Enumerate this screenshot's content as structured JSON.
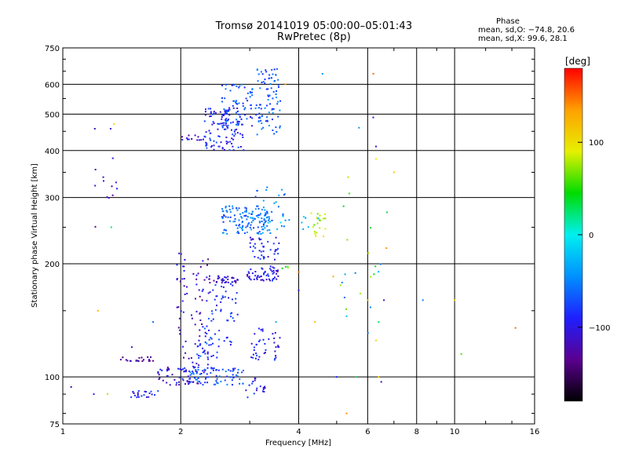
{
  "header": {
    "title": "Tromsø 20141019 05:00:00–05:01:43",
    "subtitle": "RwPretec (8p)"
  },
  "phase_stats": {
    "heading": "Phase",
    "o_line": "mean, sd,O: −74.8, 20.6",
    "x_line": "mean, sd,X:  99.6, 28.1"
  },
  "chart_data": {
    "type": "scatter",
    "title": "Tromsø 20141019 05:00:00–05:01:43",
    "subtitle": "RwPretec (8p)",
    "xlabel": "Frequency [MHz]",
    "ylabel": "Stationary phase Virtual Height [km]",
    "x_scale": "log",
    "y_scale": "log",
    "xlim": [
      1,
      16
    ],
    "ylim": [
      75,
      750
    ],
    "x_ticks": [
      1,
      2,
      4,
      6,
      8,
      10,
      16
    ],
    "x_tick_labels": [
      "1",
      "2",
      "4",
      "6",
      "8",
      "10",
      "16"
    ],
    "x_gridlines": [
      2,
      4,
      6,
      8,
      10
    ],
    "x_minor_ticks": [
      3,
      5,
      7,
      9,
      12,
      14
    ],
    "y_ticks": [
      75,
      100,
      200,
      300,
      400,
      500,
      600,
      750
    ],
    "y_tick_labels": [
      "75",
      "100",
      "200",
      "300",
      "400",
      "500",
      "600",
      "750"
    ],
    "y_gridlines": [
      100,
      200,
      300,
      400,
      500,
      600
    ],
    "grid": true,
    "colorbar": {
      "label": "[deg]",
      "range": [
        -180,
        180
      ],
      "ticks": [
        -100,
        0,
        100
      ],
      "tick_labels": [
        "−100",
        "0",
        "100"
      ],
      "colors": [
        "#000000",
        "#5a0090",
        "#1f1fff",
        "#0090ff",
        "#00f0f0",
        "#00dc00",
        "#e6f000",
        "#ffa000",
        "#ff0000"
      ]
    },
    "clusters": [
      {
        "x": [
          2.0,
          2.35
        ],
        "y": [
          425,
          440
        ],
        "phase": -105,
        "n": 14
      },
      {
        "x": [
          2.3,
          2.9
        ],
        "y": [
          400,
          520
        ],
        "phase": -90,
        "n": 110
      },
      {
        "x": [
          2.55,
          3.05
        ],
        "y": [
          460,
          600
        ],
        "phase": -72,
        "n": 70
      },
      {
        "x": [
          3.1,
          3.6
        ],
        "y": [
          440,
          660
        ],
        "phase": -65,
        "n": 85
      },
      {
        "x": [
          2.55,
          3.45
        ],
        "y": [
          240,
          285
        ],
        "phase": -58,
        "n": 130
      },
      {
        "x": [
          3.0,
          3.7
        ],
        "y": [
          250,
          320
        ],
        "phase": -52,
        "n": 30
      },
      {
        "x": [
          3.0,
          3.6
        ],
        "y": [
          205,
          235
        ],
        "phase": -95,
        "n": 40
      },
      {
        "x": [
          2.35,
          2.8
        ],
        "y": [
          178,
          186
        ],
        "phase": -115,
        "n": 35
      },
      {
        "x": [
          2.95,
          3.55
        ],
        "y": [
          180,
          197
        ],
        "phase": -100,
        "n": 55
      },
      {
        "x": [
          1.95,
          2.35
        ],
        "y": [
          95,
          215
        ],
        "phase": -110,
        "n": 90
      },
      {
        "x": [
          1.4,
          1.7
        ],
        "y": [
          110,
          113
        ],
        "phase": -125,
        "n": 20
      },
      {
        "x": [
          1.45,
          1.75
        ],
        "y": [
          88,
          92
        ],
        "phase": -90,
        "n": 22
      },
      {
        "x": [
          1.75,
          2.1
        ],
        "y": [
          95,
          106
        ],
        "phase": -105,
        "n": 40
      },
      {
        "x": [
          2.1,
          2.9
        ],
        "y": [
          95,
          106
        ],
        "phase": -70,
        "n": 80
      },
      {
        "x": [
          2.2,
          2.7
        ],
        "y": [
          112,
          135
        ],
        "phase": -80,
        "n": 40
      },
      {
        "x": [
          2.35,
          2.8
        ],
        "y": [
          140,
          180
        ],
        "phase": -90,
        "n": 40
      },
      {
        "x": [
          3.0,
          3.6
        ],
        "y": [
          110,
          135
        ],
        "phase": -95,
        "n": 40
      },
      {
        "x": [
          2.9,
          3.35
        ],
        "y": [
          88,
          100
        ],
        "phase": -100,
        "n": 18
      },
      {
        "x": [
          1.2,
          1.42
        ],
        "y": [
          240,
          560
        ],
        "phase": -110,
        "n": 14
      },
      {
        "x": [
          3.6,
          3.9
        ],
        "y": [
          190,
          200
        ],
        "phase": 60,
        "n": 4
      },
      {
        "x": [
          4.3,
          4.7
        ],
        "y": [
          235,
          275
        ],
        "phase": 85,
        "n": 22
      },
      {
        "x": [
          3.3,
          4.6
        ],
        "y": [
          240,
          270
        ],
        "phase": -30,
        "n": 12
      },
      {
        "x": [
          5.1,
          6.8
        ],
        "y": [
          140,
          340
        ],
        "phase": 55,
        "n": 12
      },
      {
        "x": [
          5.1,
          6.6
        ],
        "y": [
          130,
          200
        ],
        "phase": -40,
        "n": 8
      }
    ],
    "points": [
      {
        "x": 1.05,
        "y": 94,
        "phase": -110
      },
      {
        "x": 1.2,
        "y": 90,
        "phase": -100
      },
      {
        "x": 1.3,
        "y": 90,
        "phase": 80
      },
      {
        "x": 1.23,
        "y": 150,
        "phase": 120
      },
      {
        "x": 1.35,
        "y": 470,
        "phase": 100
      },
      {
        "x": 1.33,
        "y": 250,
        "phase": 20
      },
      {
        "x": 1.5,
        "y": 120,
        "phase": -110
      },
      {
        "x": 1.7,
        "y": 140,
        "phase": -60
      },
      {
        "x": 3.2,
        "y": 480,
        "phase": -70
      },
      {
        "x": 3.5,
        "y": 140,
        "phase": -30
      },
      {
        "x": 3.7,
        "y": 600,
        "phase": 130
      },
      {
        "x": 4.0,
        "y": 190,
        "phase": 150
      },
      {
        "x": 4.0,
        "y": 170,
        "phase": -110
      },
      {
        "x": 4.4,
        "y": 140,
        "phase": 120
      },
      {
        "x": 4.6,
        "y": 640,
        "phase": -40
      },
      {
        "x": 4.9,
        "y": 185,
        "phase": 130
      },
      {
        "x": 5.0,
        "y": 100,
        "phase": -90
      },
      {
        "x": 5.3,
        "y": 80,
        "phase": 140
      },
      {
        "x": 5.3,
        "y": 145,
        "phase": -20
      },
      {
        "x": 5.35,
        "y": 340,
        "phase": 80
      },
      {
        "x": 5.6,
        "y": 100,
        "phase": 30
      },
      {
        "x": 5.7,
        "y": 460,
        "phase": -40
      },
      {
        "x": 6.0,
        "y": 160,
        "phase": 120
      },
      {
        "x": 6.2,
        "y": 640,
        "phase": 150
      },
      {
        "x": 6.2,
        "y": 490,
        "phase": -100
      },
      {
        "x": 6.3,
        "y": 410,
        "phase": -110
      },
      {
        "x": 6.3,
        "y": 380,
        "phase": 90
      },
      {
        "x": 6.3,
        "y": 125,
        "phase": 100
      },
      {
        "x": 6.4,
        "y": 140,
        "phase": 30
      },
      {
        "x": 6.4,
        "y": 100,
        "phase": 110
      },
      {
        "x": 6.5,
        "y": 97,
        "phase": -110
      },
      {
        "x": 6.6,
        "y": 160,
        "phase": -110
      },
      {
        "x": 6.7,
        "y": 220,
        "phase": 140
      },
      {
        "x": 7.0,
        "y": 350,
        "phase": 110
      },
      {
        "x": 8.3,
        "y": 160,
        "phase": -50
      },
      {
        "x": 10.0,
        "y": 160,
        "phase": 110
      },
      {
        "x": 10.4,
        "y": 115,
        "phase": 60
      },
      {
        "x": 14.3,
        "y": 135,
        "phase": 150
      }
    ]
  }
}
